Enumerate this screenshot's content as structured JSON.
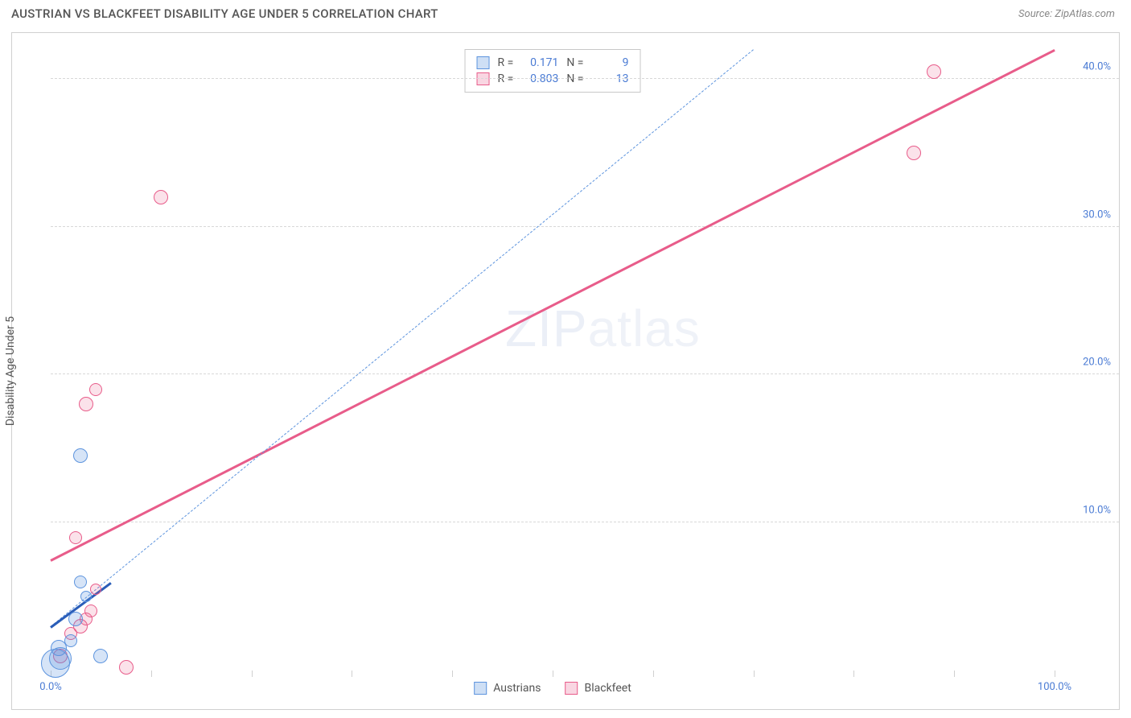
{
  "header": {
    "title": "AUSTRIAN VS BLACKFEET DISABILITY AGE UNDER 5 CORRELATION CHART",
    "source": "Source: ZipAtlas.com"
  },
  "chart": {
    "type": "scatter",
    "ylabel": "Disability Age Under 5",
    "watermark_a": "ZIP",
    "watermark_b": "atlas",
    "xlim": [
      0,
      100
    ],
    "ylim": [
      0,
      42
    ],
    "xtick_positions": [
      0,
      10,
      20,
      30,
      40,
      50,
      60,
      70,
      80,
      90,
      100
    ],
    "xtick_labels": {
      "0": "0.0%",
      "100": "100.0%"
    },
    "ytick_positions": [
      10,
      20,
      30,
      40
    ],
    "ytick_labels": {
      "10": "10.0%",
      "20": "20.0%",
      "30": "30.0%",
      "40": "40.0%"
    },
    "grid_color": "#d8d8d8",
    "background_color": "#ffffff",
    "series": {
      "austrians": {
        "label": "Austrians",
        "color_fill": "rgba(93,148,222,0.25)",
        "color_stroke": "#5d94de",
        "points": [
          {
            "x": 0.5,
            "y": 0.5,
            "r": 18
          },
          {
            "x": 1.0,
            "y": 0.8,
            "r": 14
          },
          {
            "x": 0.8,
            "y": 1.5,
            "r": 10
          },
          {
            "x": 2.0,
            "y": 2.0,
            "r": 8
          },
          {
            "x": 2.5,
            "y": 3.5,
            "r": 9
          },
          {
            "x": 3.0,
            "y": 6.0,
            "r": 8
          },
          {
            "x": 3.5,
            "y": 5.0,
            "r": 7
          },
          {
            "x": 5.0,
            "y": 1.0,
            "r": 9
          },
          {
            "x": 3.0,
            "y": 14.5,
            "r": 9
          }
        ],
        "trend_solid": {
          "x1": 0,
          "y1": 3.0,
          "x2": 6,
          "y2": 6.0,
          "color": "#2a5db8",
          "width": 3
        },
        "trend_dash": {
          "x1": 0,
          "y1": 3.0,
          "x2": 70,
          "y2": 42.0,
          "color": "#5d94de",
          "width": 1.5
        }
      },
      "blackfeet": {
        "label": "Blackfeet",
        "color_fill": "rgba(232,92,138,0.18)",
        "color_stroke": "#e85c8a",
        "points": [
          {
            "x": 1.0,
            "y": 1.0,
            "r": 9
          },
          {
            "x": 2.0,
            "y": 2.5,
            "r": 8
          },
          {
            "x": 3.0,
            "y": 3.0,
            "r": 9
          },
          {
            "x": 4.0,
            "y": 4.0,
            "r": 8
          },
          {
            "x": 3.5,
            "y": 3.5,
            "r": 8
          },
          {
            "x": 4.5,
            "y": 5.5,
            "r": 7
          },
          {
            "x": 7.5,
            "y": 0.2,
            "r": 9
          },
          {
            "x": 2.5,
            "y": 9.0,
            "r": 8
          },
          {
            "x": 3.5,
            "y": 18.0,
            "r": 9
          },
          {
            "x": 4.5,
            "y": 19.0,
            "r": 8
          },
          {
            "x": 11.0,
            "y": 32.0,
            "r": 9
          },
          {
            "x": 86.0,
            "y": 35.0,
            "r": 9
          },
          {
            "x": 88.0,
            "y": 40.5,
            "r": 9
          }
        ],
        "trend": {
          "x1": 0,
          "y1": 7.5,
          "x2": 100,
          "y2": 42.0,
          "color": "#e85c8a",
          "width": 3
        }
      }
    },
    "stats": [
      {
        "swatch": "blue",
        "r_label": "R =",
        "r": "0.171",
        "n_label": "N =",
        "n": "9"
      },
      {
        "swatch": "pink",
        "r_label": "R =",
        "r": "0.803",
        "n_label": "N =",
        "n": "13"
      }
    ]
  }
}
